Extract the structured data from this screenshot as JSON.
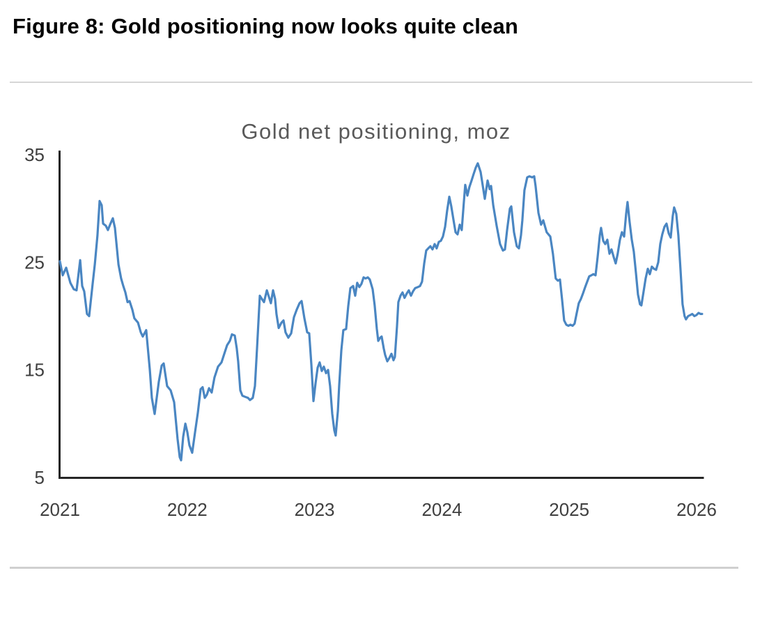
{
  "page": {
    "title": "Figure 8: Gold positioning now looks quite clean"
  },
  "chart_data": {
    "type": "line",
    "title": "Gold net positioning, moz",
    "xlabel": "",
    "ylabel": "",
    "x_ticks": [
      2021,
      2022,
      2023,
      2024,
      2025,
      2026
    ],
    "y_ticks": [
      5,
      15,
      25,
      35
    ],
    "xlim": [
      2021.0,
      2026.06
    ],
    "ylim": [
      5,
      35
    ],
    "grid": false,
    "legend": false,
    "line_color": "#4a86c2",
    "axis_color": "#262626",
    "tick_label_color": "#3f3f3f",
    "title_color": "#595959",
    "series": [
      {
        "name": "Gold net positioning, moz",
        "points": [
          [
            2021.0,
            25.1
          ],
          [
            2021.022,
            23.8
          ],
          [
            2021.049,
            24.5
          ],
          [
            2021.082,
            23.1
          ],
          [
            2021.109,
            22.5
          ],
          [
            2021.131,
            22.4
          ],
          [
            2021.159,
            25.2
          ],
          [
            2021.175,
            22.8
          ],
          [
            2021.191,
            22.3
          ],
          [
            2021.213,
            20.2
          ],
          [
            2021.23,
            20.0
          ],
          [
            2021.257,
            23.0
          ],
          [
            2021.274,
            24.8
          ],
          [
            2021.295,
            27.5
          ],
          [
            2021.312,
            30.7
          ],
          [
            2021.328,
            30.3
          ],
          [
            2021.339,
            28.6
          ],
          [
            2021.361,
            28.4
          ],
          [
            2021.377,
            28.0
          ],
          [
            2021.394,
            28.5
          ],
          [
            2021.416,
            29.1
          ],
          [
            2021.432,
            28.2
          ],
          [
            2021.46,
            24.8
          ],
          [
            2021.481,
            23.5
          ],
          [
            2021.498,
            22.8
          ],
          [
            2021.514,
            22.2
          ],
          [
            2021.531,
            21.3
          ],
          [
            2021.547,
            21.4
          ],
          [
            2021.569,
            20.6
          ],
          [
            2021.585,
            19.8
          ],
          [
            2021.613,
            19.4
          ],
          [
            2021.635,
            18.5
          ],
          [
            2021.651,
            18.1
          ],
          [
            2021.678,
            18.7
          ],
          [
            2021.706,
            15.0
          ],
          [
            2021.722,
            12.4
          ],
          [
            2021.744,
            10.9
          ],
          [
            2021.777,
            13.9
          ],
          [
            2021.799,
            15.4
          ],
          [
            2021.815,
            15.6
          ],
          [
            2021.842,
            13.5
          ],
          [
            2021.87,
            13.1
          ],
          [
            2021.897,
            12.0
          ],
          [
            2021.924,
            8.6
          ],
          [
            2021.941,
            6.9
          ],
          [
            2021.952,
            6.6
          ],
          [
            2021.968,
            8.8
          ],
          [
            2021.985,
            10.0
          ],
          [
            2022.001,
            9.2
          ],
          [
            2022.017,
            8.0
          ],
          [
            2022.039,
            7.3
          ],
          [
            2022.061,
            9.2
          ],
          [
            2022.083,
            11.0
          ],
          [
            2022.105,
            13.2
          ],
          [
            2022.121,
            13.4
          ],
          [
            2022.138,
            12.4
          ],
          [
            2022.154,
            12.7
          ],
          [
            2022.171,
            13.3
          ],
          [
            2022.192,
            12.9
          ],
          [
            2022.214,
            14.3
          ],
          [
            2022.242,
            15.3
          ],
          [
            2022.269,
            15.7
          ],
          [
            2022.291,
            16.5
          ],
          [
            2022.313,
            17.3
          ],
          [
            2022.335,
            17.7
          ],
          [
            2022.351,
            18.3
          ],
          [
            2022.373,
            18.2
          ],
          [
            2022.389,
            17.0
          ],
          [
            2022.4,
            15.8
          ],
          [
            2022.417,
            13.1
          ],
          [
            2022.433,
            12.6
          ],
          [
            2022.455,
            12.5
          ],
          [
            2022.477,
            12.4
          ],
          [
            2022.493,
            12.2
          ],
          [
            2022.515,
            12.4
          ],
          [
            2022.532,
            13.5
          ],
          [
            2022.548,
            17.0
          ],
          [
            2022.57,
            21.9
          ],
          [
            2022.586,
            21.6
          ],
          [
            2022.603,
            21.3
          ],
          [
            2022.625,
            22.4
          ],
          [
            2022.641,
            21.8
          ],
          [
            2022.657,
            21.2
          ],
          [
            2022.674,
            22.4
          ],
          [
            2022.69,
            21.6
          ],
          [
            2022.701,
            20.2
          ],
          [
            2022.718,
            18.9
          ],
          [
            2022.74,
            19.4
          ],
          [
            2022.756,
            19.6
          ],
          [
            2022.772,
            18.5
          ],
          [
            2022.794,
            18.0
          ],
          [
            2022.816,
            18.4
          ],
          [
            2022.838,
            19.9
          ],
          [
            2022.86,
            20.6
          ],
          [
            2022.882,
            21.2
          ],
          [
            2022.898,
            21.4
          ],
          [
            2022.92,
            19.8
          ],
          [
            2022.942,
            18.5
          ],
          [
            2022.958,
            18.4
          ],
          [
            2022.975,
            15.5
          ],
          [
            2022.991,
            12.1
          ],
          [
            2023.008,
            13.8
          ],
          [
            2023.024,
            15.2
          ],
          [
            2023.04,
            15.7
          ],
          [
            2023.057,
            14.9
          ],
          [
            2023.073,
            15.3
          ],
          [
            2023.09,
            14.7
          ],
          [
            2023.106,
            15.0
          ],
          [
            2023.122,
            13.5
          ],
          [
            2023.139,
            10.9
          ],
          [
            2023.155,
            9.4
          ],
          [
            2023.166,
            8.9
          ],
          [
            2023.183,
            11.2
          ],
          [
            2023.193,
            13.5
          ],
          [
            2023.21,
            16.8
          ],
          [
            2023.226,
            18.7
          ],
          [
            2023.248,
            18.8
          ],
          [
            2023.264,
            20.9
          ],
          [
            2023.281,
            22.6
          ],
          [
            2023.303,
            22.8
          ],
          [
            2023.319,
            21.9
          ],
          [
            2023.335,
            23.1
          ],
          [
            2023.352,
            22.7
          ],
          [
            2023.368,
            23.0
          ],
          [
            2023.385,
            23.6
          ],
          [
            2023.401,
            23.5
          ],
          [
            2023.418,
            23.6
          ],
          [
            2023.434,
            23.4
          ],
          [
            2023.456,
            22.5
          ],
          [
            2023.472,
            21.0
          ],
          [
            2023.489,
            18.8
          ],
          [
            2023.5,
            17.7
          ],
          [
            2023.516,
            18.0
          ],
          [
            2023.527,
            18.1
          ],
          [
            2023.543,
            17.0
          ],
          [
            2023.554,
            16.4
          ],
          [
            2023.571,
            15.8
          ],
          [
            2023.587,
            16.1
          ],
          [
            2023.604,
            16.5
          ],
          [
            2023.62,
            15.9
          ],
          [
            2023.631,
            16.2
          ],
          [
            2023.647,
            19.0
          ],
          [
            2023.658,
            21.3
          ],
          [
            2023.675,
            21.9
          ],
          [
            2023.691,
            22.2
          ],
          [
            2023.707,
            21.7
          ],
          [
            2023.724,
            22.1
          ],
          [
            2023.74,
            22.4
          ],
          [
            2023.757,
            21.9
          ],
          [
            2023.773,
            22.3
          ],
          [
            2023.79,
            22.6
          ],
          [
            2023.811,
            22.7
          ],
          [
            2023.828,
            22.8
          ],
          [
            2023.844,
            23.2
          ],
          [
            2023.861,
            24.9
          ],
          [
            2023.877,
            26.1
          ],
          [
            2023.893,
            26.3
          ],
          [
            2023.91,
            26.5
          ],
          [
            2023.926,
            26.2
          ],
          [
            2023.943,
            26.7
          ],
          [
            2023.959,
            26.3
          ],
          [
            2023.976,
            26.9
          ],
          [
            2023.992,
            27.0
          ],
          [
            2024.008,
            27.4
          ],
          [
            2024.025,
            28.3
          ],
          [
            2024.041,
            29.8
          ],
          [
            2024.058,
            31.1
          ],
          [
            2024.074,
            30.2
          ],
          [
            2024.09,
            29.0
          ],
          [
            2024.107,
            27.8
          ],
          [
            2024.123,
            27.6
          ],
          [
            2024.14,
            28.5
          ],
          [
            2024.156,
            28.0
          ],
          [
            2024.172,
            30.5
          ],
          [
            2024.183,
            32.2
          ],
          [
            2024.2,
            31.2
          ],
          [
            2024.216,
            32.0
          ],
          [
            2024.233,
            32.6
          ],
          [
            2024.249,
            33.2
          ],
          [
            2024.266,
            33.8
          ],
          [
            2024.282,
            34.2
          ],
          [
            2024.304,
            33.4
          ],
          [
            2024.337,
            30.9
          ],
          [
            2024.359,
            32.6
          ],
          [
            2024.375,
            31.8
          ],
          [
            2024.386,
            32.1
          ],
          [
            2024.403,
            30.3
          ],
          [
            2024.43,
            28.4
          ],
          [
            2024.457,
            26.7
          ],
          [
            2024.479,
            26.1
          ],
          [
            2024.495,
            26.2
          ],
          [
            2024.512,
            28.0
          ],
          [
            2024.534,
            30.0
          ],
          [
            2024.545,
            30.2
          ],
          [
            2024.566,
            27.8
          ],
          [
            2024.588,
            26.5
          ],
          [
            2024.605,
            26.3
          ],
          [
            2024.621,
            27.5
          ],
          [
            2024.632,
            28.9
          ],
          [
            2024.648,
            31.7
          ],
          [
            2024.67,
            32.9
          ],
          [
            2024.687,
            33.0
          ],
          [
            2024.709,
            32.9
          ],
          [
            2024.725,
            33.0
          ],
          [
            2024.736,
            32.1
          ],
          [
            2024.758,
            29.6
          ],
          [
            2024.779,
            28.5
          ],
          [
            2024.796,
            28.9
          ],
          [
            2024.823,
            27.8
          ],
          [
            2024.851,
            27.4
          ],
          [
            2024.872,
            25.8
          ],
          [
            2024.894,
            23.5
          ],
          [
            2024.911,
            23.3
          ],
          [
            2024.927,
            23.4
          ],
          [
            2024.944,
            21.5
          ],
          [
            2024.96,
            19.6
          ],
          [
            2024.977,
            19.2
          ],
          [
            2024.993,
            19.1
          ],
          [
            2025.01,
            19.2
          ],
          [
            2025.026,
            19.1
          ],
          [
            2025.042,
            19.3
          ],
          [
            2025.059,
            20.3
          ],
          [
            2025.075,
            21.2
          ],
          [
            2025.092,
            21.6
          ],
          [
            2025.108,
            22.1
          ],
          [
            2025.125,
            22.7
          ],
          [
            2025.141,
            23.2
          ],
          [
            2025.157,
            23.7
          ],
          [
            2025.174,
            23.8
          ],
          [
            2025.19,
            23.9
          ],
          [
            2025.207,
            23.8
          ],
          [
            2025.223,
            25.5
          ],
          [
            2025.24,
            27.5
          ],
          [
            2025.25,
            28.2
          ],
          [
            2025.267,
            27.0
          ],
          [
            2025.283,
            26.7
          ],
          [
            2025.299,
            27.1
          ],
          [
            2025.316,
            25.8
          ],
          [
            2025.332,
            26.2
          ],
          [
            2025.349,
            25.5
          ],
          [
            2025.365,
            24.9
          ],
          [
            2025.381,
            25.8
          ],
          [
            2025.398,
            27.1
          ],
          [
            2025.414,
            27.8
          ],
          [
            2025.431,
            27.4
          ],
          [
            2025.447,
            29.5
          ],
          [
            2025.458,
            30.6
          ],
          [
            2025.474,
            28.8
          ],
          [
            2025.491,
            27.1
          ],
          [
            2025.507,
            26.0
          ],
          [
            2025.524,
            24.0
          ],
          [
            2025.54,
            22.0
          ],
          [
            2025.556,
            21.1
          ],
          [
            2025.567,
            21.0
          ],
          [
            2025.584,
            22.3
          ],
          [
            2025.6,
            23.5
          ],
          [
            2025.617,
            24.4
          ],
          [
            2025.633,
            23.9
          ],
          [
            2025.649,
            24.6
          ],
          [
            2025.666,
            24.4
          ],
          [
            2025.682,
            24.3
          ],
          [
            2025.699,
            25.0
          ],
          [
            2025.715,
            26.7
          ],
          [
            2025.731,
            27.6
          ],
          [
            2025.748,
            28.3
          ],
          [
            2025.764,
            28.6
          ],
          [
            2025.781,
            27.7
          ],
          [
            2025.797,
            27.3
          ],
          [
            2025.813,
            29.3
          ],
          [
            2025.824,
            30.1
          ],
          [
            2025.841,
            29.5
          ],
          [
            2025.857,
            27.5
          ],
          [
            2025.873,
            24.5
          ],
          [
            2025.89,
            21.1
          ],
          [
            2025.906,
            20.0
          ],
          [
            2025.917,
            19.7
          ],
          [
            2025.934,
            20.0
          ],
          [
            2025.95,
            20.1
          ],
          [
            2025.966,
            20.2
          ],
          [
            2025.983,
            20.0
          ],
          [
            2025.999,
            20.1
          ],
          [
            2026.016,
            20.3
          ],
          [
            2026.032,
            20.2
          ],
          [
            2026.043,
            20.2
          ]
        ]
      }
    ]
  }
}
